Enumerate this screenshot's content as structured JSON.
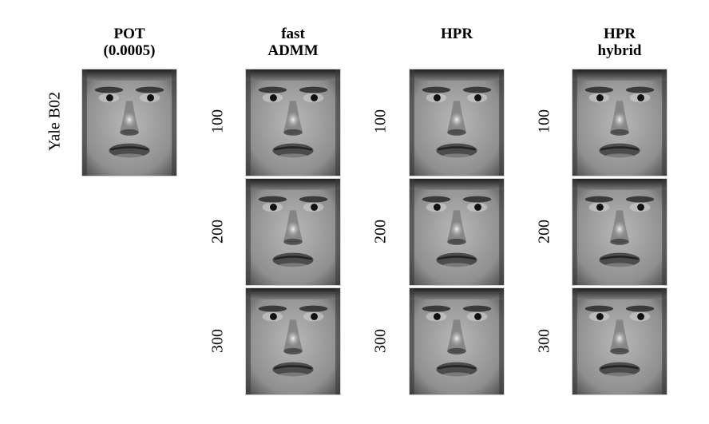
{
  "figure": {
    "columns": [
      {
        "title_lines": [
          "POT",
          "(0.0005)"
        ]
      },
      {
        "title_lines": [
          "fast",
          "ADMM"
        ]
      },
      {
        "title_lines": [
          "HPR"
        ]
      },
      {
        "title_lines": [
          "HPR",
          "hybrid"
        ]
      }
    ],
    "left_label": "Yale B02",
    "row_labels": [
      "100",
      "200",
      "300"
    ],
    "images": [
      {
        "column": "POT",
        "row": null,
        "description": "face"
      },
      {
        "column": "fast ADMM",
        "row": "100",
        "description": "face"
      },
      {
        "column": "fast ADMM",
        "row": "200",
        "description": "face"
      },
      {
        "column": "fast ADMM",
        "row": "300",
        "description": "face"
      },
      {
        "column": "HPR",
        "row": "100",
        "description": "face"
      },
      {
        "column": "HPR",
        "row": "200",
        "description": "face"
      },
      {
        "column": "HPR",
        "row": "300",
        "description": "face"
      },
      {
        "column": "HPR hybrid",
        "row": "100",
        "description": "face"
      },
      {
        "column": "HPR hybrid",
        "row": "200",
        "description": "face"
      },
      {
        "column": "HPR hybrid",
        "row": "300",
        "description": "face"
      }
    ]
  }
}
